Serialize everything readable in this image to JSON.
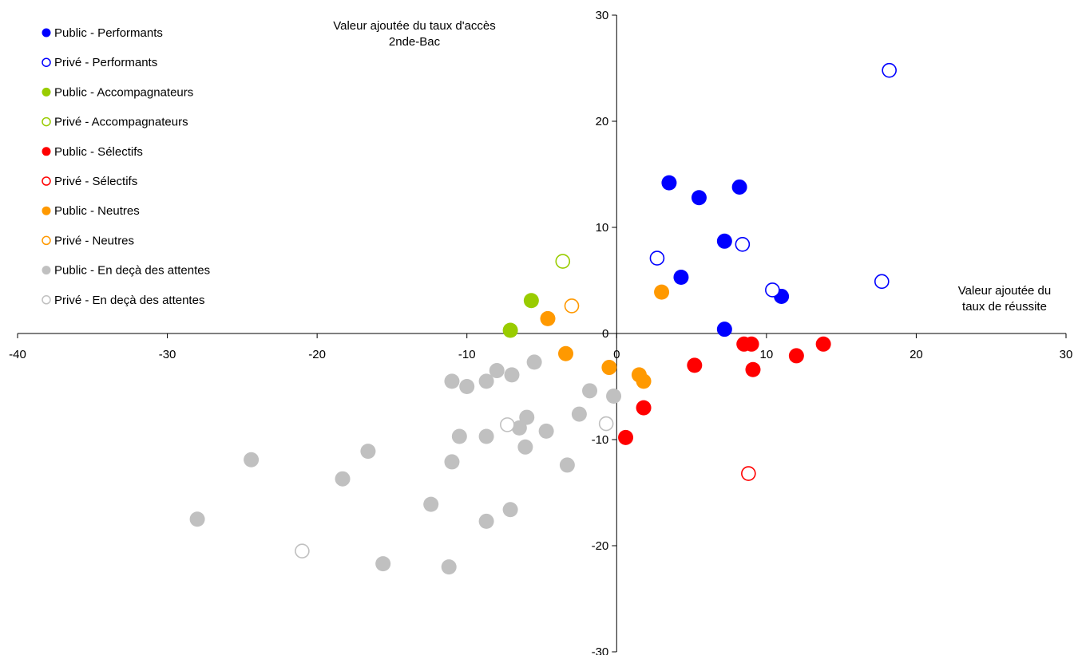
{
  "chart_data": {
    "type": "scatter",
    "xlabel": "Valeur ajoutée du taux de réussite",
    "xlabel_lines": [
      "Valeur ajoutée du",
      "taux de réussite"
    ],
    "ylabel": "Valeur ajoutée du taux d'accès 2nde-Bac",
    "ylabel_lines": [
      "Valeur ajoutée du taux d'accès",
      "2nde-Bac"
    ],
    "xlim": [
      -40,
      30
    ],
    "ylim": [
      -30,
      30
    ],
    "x_ticks": [
      -40,
      -30,
      -20,
      -10,
      0,
      10,
      20,
      30
    ],
    "y_ticks": [
      30,
      20,
      10,
      0,
      -10,
      -20,
      -30
    ],
    "axes_cross_at_origin": true,
    "grid": false,
    "legend_position": "top-left",
    "series": [
      {
        "name": "Public - Performants",
        "color": "#0000ff",
        "filled": true,
        "points": [
          [
            3.5,
            14.2
          ],
          [
            5.5,
            12.8
          ],
          [
            8.2,
            13.8
          ],
          [
            7.2,
            8.7
          ],
          [
            4.3,
            5.3
          ],
          [
            11.0,
            3.5
          ],
          [
            7.2,
            0.4
          ]
        ]
      },
      {
        "name": "Privé - Performants",
        "color": "#0000ff",
        "filled": false,
        "points": [
          [
            18.2,
            24.8
          ],
          [
            2.7,
            7.1
          ],
          [
            8.4,
            8.4
          ],
          [
            10.4,
            4.1
          ],
          [
            17.7,
            4.9
          ]
        ]
      },
      {
        "name": "Public - Accompagnateurs",
        "color": "#99cc00",
        "filled": true,
        "points": [
          [
            -5.7,
            3.1
          ],
          [
            -7.1,
            0.3
          ]
        ]
      },
      {
        "name": "Privé - Accompagnateurs",
        "color": "#99cc00",
        "filled": false,
        "points": [
          [
            -3.6,
            6.8
          ]
        ]
      },
      {
        "name": "Public - Sélectifs",
        "color": "#ff0000",
        "filled": true,
        "points": [
          [
            8.5,
            -1.0
          ],
          [
            9.0,
            -1.0
          ],
          [
            13.8,
            -1.0
          ],
          [
            12.0,
            -2.1
          ],
          [
            5.2,
            -3.0
          ],
          [
            9.1,
            -3.4
          ],
          [
            1.8,
            -7.0
          ],
          [
            0.6,
            -9.8
          ]
        ]
      },
      {
        "name": "Privé - Sélectifs",
        "color": "#ff0000",
        "filled": false,
        "points": [
          [
            8.8,
            -13.2
          ]
        ]
      },
      {
        "name": "Public - Neutres",
        "color": "#ff9900",
        "filled": true,
        "points": [
          [
            3.0,
            3.9
          ],
          [
            -4.6,
            1.4
          ],
          [
            -3.4,
            -1.9
          ],
          [
            -0.5,
            -3.2
          ],
          [
            1.5,
            -3.9
          ],
          [
            1.8,
            -4.5
          ]
        ]
      },
      {
        "name": "Privé - Neutres",
        "color": "#ff9900",
        "filled": false,
        "points": [
          [
            -3.0,
            2.6
          ]
        ]
      },
      {
        "name": "Public - En deçà des attentes",
        "color": "#c0c0c0",
        "filled": true,
        "points": [
          [
            -5.5,
            -2.7
          ],
          [
            -8.0,
            -3.5
          ],
          [
            -7.0,
            -3.9
          ],
          [
            -11.0,
            -4.5
          ],
          [
            -10.0,
            -5.0
          ],
          [
            -8.7,
            -4.5
          ],
          [
            -1.8,
            -5.4
          ],
          [
            -0.2,
            -5.9
          ],
          [
            -6.0,
            -7.9
          ],
          [
            -2.5,
            -7.6
          ],
          [
            -6.5,
            -8.9
          ],
          [
            -4.7,
            -9.2
          ],
          [
            -10.5,
            -9.7
          ],
          [
            -8.7,
            -9.7
          ],
          [
            -6.1,
            -10.7
          ],
          [
            -11.0,
            -12.1
          ],
          [
            -3.3,
            -12.4
          ],
          [
            -16.6,
            -11.1
          ],
          [
            -24.4,
            -11.9
          ],
          [
            -18.3,
            -13.7
          ],
          [
            -12.4,
            -16.1
          ],
          [
            -7.1,
            -16.6
          ],
          [
            -8.7,
            -17.7
          ],
          [
            -28.0,
            -17.5
          ],
          [
            -15.6,
            -21.7
          ],
          [
            -11.2,
            -22.0
          ]
        ]
      },
      {
        "name": "Privé - En deçà des attentes",
        "color": "#c0c0c0",
        "filled": false,
        "points": [
          [
            -7.3,
            -8.6
          ],
          [
            -0.7,
            -8.5
          ],
          [
            -21.0,
            -20.5
          ]
        ]
      }
    ]
  }
}
